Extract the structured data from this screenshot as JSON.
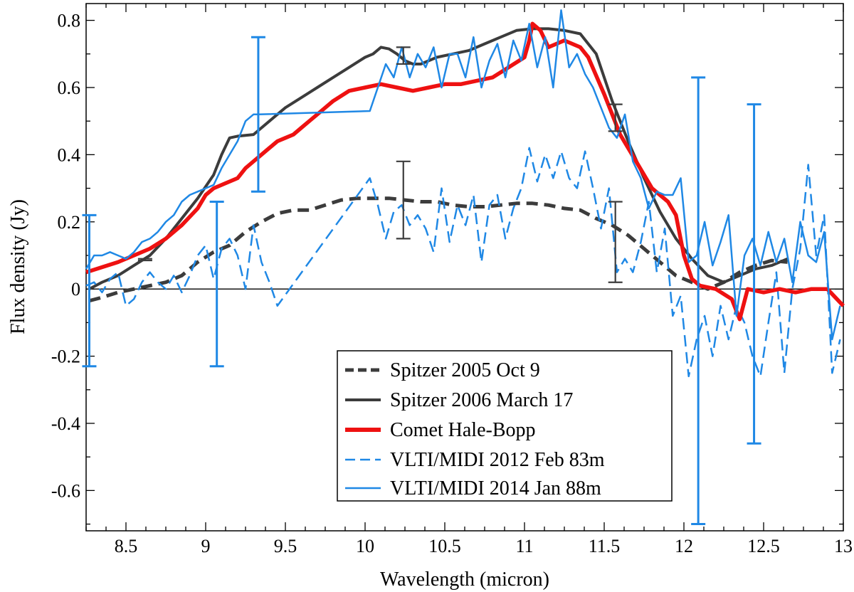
{
  "chart_data": {
    "type": "line",
    "title": "",
    "xlabel": "Wavelength (micron)",
    "ylabel": "Flux density (Jy)",
    "xlim": [
      8.25,
      13.0
    ],
    "ylim": [
      -0.72,
      0.85
    ],
    "xticks": [
      8.5,
      9,
      9.5,
      10,
      10.5,
      11,
      11.5,
      12,
      12.5,
      13
    ],
    "xtick_labels": [
      "8.5",
      "9",
      "9.5",
      "10",
      "10.5",
      "11",
      "11.5",
      "12",
      "12.5",
      "13"
    ],
    "yticks": [
      -0.6,
      -0.4,
      -0.2,
      0,
      0.2,
      0.4,
      0.6,
      0.8
    ],
    "ytick_labels": [
      "-0.6",
      "-0.4",
      "-0.2",
      "0",
      "0.2",
      "0.4",
      "0.6",
      "0.8"
    ],
    "grid": false,
    "zero_line": true,
    "legend_position": "bottom-center",
    "series": [
      {
        "name": "Spitzer 2005 Oct 9",
        "color": "#3c3c3c",
        "style": "dashed-thick",
        "x": [
          8.27,
          8.35,
          8.45,
          8.55,
          8.65,
          8.75,
          8.85,
          8.95,
          9.05,
          9.15,
          9.25,
          9.35,
          9.45,
          9.55,
          9.65,
          9.75,
          9.85,
          9.95,
          10.05,
          10.15,
          10.25,
          10.35,
          10.45,
          10.55,
          10.65,
          10.75,
          10.85,
          10.95,
          11.05,
          11.15,
          11.25,
          11.35,
          11.45,
          11.55,
          11.65,
          11.75,
          11.85,
          11.95,
          12.05,
          12.15,
          12.25,
          12.35,
          12.45,
          12.55,
          12.65
        ],
        "y": [
          -0.035,
          -0.025,
          -0.01,
          0.0,
          0.01,
          0.02,
          0.04,
          0.08,
          0.11,
          0.13,
          0.17,
          0.2,
          0.225,
          0.235,
          0.235,
          0.25,
          0.265,
          0.27,
          0.27,
          0.27,
          0.265,
          0.26,
          0.26,
          0.25,
          0.245,
          0.245,
          0.25,
          0.255,
          0.255,
          0.25,
          0.24,
          0.235,
          0.21,
          0.19,
          0.16,
          0.12,
          0.08,
          0.04,
          0.02,
          0.0,
          0.02,
          0.05,
          0.07,
          0.085,
          0.08
        ]
      },
      {
        "name": "Spitzer 2006 March 17",
        "color": "#3c3c3c",
        "style": "solid-thick",
        "x": [
          8.27,
          8.35,
          8.45,
          8.55,
          8.65,
          8.75,
          8.85,
          8.95,
          9.05,
          9.1,
          9.15,
          9.2,
          9.3,
          9.4,
          9.5,
          9.6,
          9.7,
          9.8,
          9.9,
          10.0,
          10.05,
          10.1,
          10.15,
          10.2,
          10.25,
          10.3,
          10.35,
          10.45,
          10.55,
          10.65,
          10.75,
          10.85,
          10.95,
          11.05,
          11.15,
          11.25,
          11.35,
          11.45,
          11.55,
          11.65,
          11.75,
          11.85,
          11.95,
          12.05,
          12.15,
          12.25,
          12.35,
          12.45,
          12.55,
          12.65
        ],
        "y": [
          0.0,
          0.02,
          0.04,
          0.07,
          0.1,
          0.15,
          0.21,
          0.27,
          0.34,
          0.4,
          0.45,
          0.455,
          0.46,
          0.5,
          0.54,
          0.57,
          0.6,
          0.63,
          0.66,
          0.69,
          0.7,
          0.72,
          0.715,
          0.7,
          0.68,
          0.67,
          0.67,
          0.69,
          0.7,
          0.71,
          0.73,
          0.75,
          0.77,
          0.775,
          0.775,
          0.77,
          0.76,
          0.7,
          0.56,
          0.44,
          0.33,
          0.23,
          0.15,
          0.09,
          0.04,
          0.02,
          0.04,
          0.06,
          0.07,
          0.09
        ]
      },
      {
        "name": "Comet Hale-Bopp",
        "color": "#ee1111",
        "style": "solid-thick-noisy",
        "x": [
          8.25,
          8.35,
          8.45,
          8.55,
          8.65,
          8.75,
          8.85,
          8.95,
          9.0,
          9.05,
          9.1,
          9.15,
          9.2,
          9.25,
          9.3,
          9.35,
          9.4,
          9.45,
          9.5,
          9.55,
          9.6,
          9.65,
          9.7,
          9.75,
          9.8,
          9.9,
          10.0,
          10.1,
          10.2,
          10.3,
          10.4,
          10.5,
          10.6,
          10.7,
          10.8,
          10.9,
          11.0,
          11.03,
          11.05,
          11.1,
          11.15,
          11.2,
          11.25,
          11.3,
          11.35,
          11.4,
          11.5,
          11.6,
          11.7,
          11.8,
          11.9,
          11.95,
          12.0,
          12.05,
          12.1,
          12.2,
          12.3,
          12.35,
          12.4,
          12.5,
          12.6,
          12.7,
          12.8,
          12.9,
          13.0
        ],
        "y": [
          0.05,
          0.065,
          0.08,
          0.1,
          0.12,
          0.15,
          0.19,
          0.24,
          0.28,
          0.3,
          0.31,
          0.32,
          0.33,
          0.36,
          0.38,
          0.4,
          0.42,
          0.44,
          0.45,
          0.46,
          0.48,
          0.5,
          0.52,
          0.54,
          0.56,
          0.59,
          0.6,
          0.61,
          0.6,
          0.59,
          0.6,
          0.61,
          0.61,
          0.62,
          0.63,
          0.66,
          0.69,
          0.74,
          0.79,
          0.77,
          0.72,
          0.73,
          0.74,
          0.73,
          0.72,
          0.69,
          0.58,
          0.46,
          0.38,
          0.3,
          0.26,
          0.22,
          0.1,
          0.03,
          0.01,
          0.0,
          -0.03,
          -0.09,
          0.0,
          -0.01,
          0.0,
          -0.01,
          0.0,
          0.0,
          -0.05
        ]
      },
      {
        "name": "VLTI/MIDI 2012 Feb 83m",
        "color": "#1f88e5",
        "style": "dashed-thin",
        "x": [
          8.25,
          8.3,
          8.35,
          8.4,
          8.45,
          8.5,
          8.55,
          8.6,
          8.65,
          8.7,
          8.75,
          8.8,
          8.85,
          8.9,
          8.95,
          9.0,
          9.05,
          9.1,
          9.15,
          9.2,
          9.25,
          9.3,
          9.35,
          9.4,
          9.45,
          10.03,
          10.08,
          10.13,
          10.18,
          10.23,
          10.28,
          10.33,
          10.38,
          10.43,
          10.48,
          10.53,
          10.58,
          10.63,
          10.68,
          10.73,
          10.78,
          10.83,
          10.88,
          10.93,
          10.98,
          11.03,
          11.08,
          11.13,
          11.18,
          11.23,
          11.28,
          11.33,
          11.38,
          11.43,
          11.48,
          11.53,
          11.58,
          11.63,
          11.68,
          11.73,
          11.78,
          11.83,
          11.88,
          11.93,
          11.98,
          12.03,
          12.08,
          12.13,
          12.18,
          12.23,
          12.28,
          12.33,
          12.38,
          12.43,
          12.48,
          12.53,
          12.58,
          12.63,
          12.68,
          12.73,
          12.78,
          12.83,
          12.88,
          12.93,
          12.98
        ],
        "y": [
          0.01,
          0.02,
          -0.01,
          0.03,
          0.05,
          -0.05,
          -0.03,
          0.02,
          0.05,
          0.02,
          0.0,
          0.04,
          -0.01,
          0.04,
          0.1,
          0.13,
          0.03,
          0.12,
          0.15,
          0.1,
          0.0,
          0.19,
          0.08,
          0.02,
          -0.05,
          0.33,
          0.25,
          0.15,
          0.23,
          0.25,
          0.19,
          0.22,
          0.18,
          0.11,
          0.3,
          0.14,
          0.25,
          0.19,
          0.28,
          0.08,
          0.25,
          0.28,
          0.15,
          0.24,
          0.3,
          0.42,
          0.32,
          0.4,
          0.33,
          0.41,
          0.33,
          0.3,
          0.41,
          0.3,
          0.18,
          0.3,
          0.05,
          0.09,
          0.05,
          0.14,
          0.26,
          0.05,
          0.18,
          -0.08,
          -0.02,
          -0.26,
          -0.15,
          -0.08,
          -0.2,
          -0.05,
          -0.15,
          -0.05,
          -0.1,
          -0.2,
          -0.26,
          -0.1,
          0.05,
          -0.25,
          0.0,
          0.12,
          0.37,
          0.1,
          0.22,
          -0.25,
          -0.15
        ]
      },
      {
        "name": "VLTI/MIDI 2014 Jan 88m",
        "color": "#1f88e5",
        "style": "solid-thin",
        "x": [
          8.25,
          8.3,
          8.35,
          8.4,
          8.45,
          8.5,
          8.55,
          8.6,
          8.65,
          8.7,
          8.75,
          8.8,
          8.85,
          8.9,
          8.95,
          9.0,
          9.05,
          9.1,
          9.15,
          9.2,
          9.25,
          9.3,
          9.33,
          10.03,
          10.08,
          10.13,
          10.18,
          10.23,
          10.28,
          10.33,
          10.38,
          10.43,
          10.48,
          10.53,
          10.58,
          10.63,
          10.68,
          10.73,
          10.78,
          10.83,
          10.88,
          10.93,
          10.98,
          11.03,
          11.08,
          11.13,
          11.18,
          11.23,
          11.28,
          11.33,
          11.38,
          11.43,
          11.48,
          11.53,
          11.58,
          11.63,
          11.68,
          11.73,
          11.78,
          11.83,
          11.88,
          11.93,
          11.98,
          12.03,
          12.08,
          12.13,
          12.18,
          12.23,
          12.28,
          12.33,
          12.38,
          12.43,
          12.48,
          12.53,
          12.58,
          12.63,
          12.68,
          12.73,
          12.78,
          12.83,
          12.88,
          12.93,
          12.98
        ],
        "y": [
          0.06,
          0.1,
          0.1,
          0.11,
          0.1,
          0.09,
          0.11,
          0.14,
          0.15,
          0.17,
          0.2,
          0.22,
          0.26,
          0.28,
          0.29,
          0.3,
          0.31,
          0.36,
          0.4,
          0.44,
          0.5,
          0.52,
          0.52,
          0.53,
          0.6,
          0.67,
          0.63,
          0.72,
          0.63,
          0.7,
          0.66,
          0.72,
          0.6,
          0.7,
          0.7,
          0.63,
          0.75,
          0.6,
          0.68,
          0.73,
          0.63,
          0.74,
          0.68,
          0.79,
          0.66,
          0.75,
          0.6,
          0.83,
          0.66,
          0.7,
          0.64,
          0.6,
          0.54,
          0.48,
          0.45,
          0.52,
          0.38,
          0.33,
          0.24,
          0.29,
          0.28,
          0.28,
          0.33,
          0.08,
          0.1,
          0.2,
          0.07,
          0.14,
          0.22,
          -0.08,
          0.1,
          0.15,
          0.07,
          0.17,
          0.08,
          0.15,
          0.02,
          0.2,
          0.1,
          0.08,
          0.17,
          -0.15,
          -0.05
        ]
      }
    ],
    "errorbars": [
      {
        "series": "VLTI/MIDI 2014 Jan 88m",
        "color": "#1f88e5",
        "x": 8.27,
        "ylow": -0.23,
        "yhigh": 0.22
      },
      {
        "series": "VLTI/MIDI 2014 Jan 88m",
        "color": "#1f88e5",
        "x": 9.07,
        "ylow": -0.23,
        "yhigh": 0.26
      },
      {
        "series": "VLTI/MIDI 2014 Jan 88m",
        "color": "#1f88e5",
        "x": 9.33,
        "ylow": 0.29,
        "yhigh": 0.75
      },
      {
        "series": "VLTI/MIDI 2014 Jan 88m",
        "color": "#1f88e5",
        "x": 12.09,
        "ylow": -0.7,
        "yhigh": 0.63
      },
      {
        "series": "VLTI/MIDI 2014 Jan 88m",
        "color": "#1f88e5",
        "x": 12.44,
        "ylow": -0.46,
        "yhigh": 0.55
      },
      {
        "series": "Spitzer 2006 March 17",
        "color": "#3c3c3c",
        "x": 10.24,
        "ylow": 0.67,
        "yhigh": 0.72
      },
      {
        "series": "Spitzer 2006 March 17",
        "color": "#3c3c3c",
        "x": 11.57,
        "ylow": 0.47,
        "yhigh": 0.55
      },
      {
        "series": "Spitzer 2005 Oct 9",
        "color": "#3c3c3c",
        "x": 10.24,
        "ylow": 0.15,
        "yhigh": 0.38
      },
      {
        "series": "Spitzer 2005 Oct 9",
        "color": "#3c3c3c",
        "x": 11.57,
        "ylow": 0.02,
        "yhigh": 0.26
      },
      {
        "series": "Spitzer 2006 March 17",
        "color": "#3c3c3c",
        "x": 8.62,
        "ylow": 0.085,
        "yhigh": 0.09
      }
    ]
  }
}
